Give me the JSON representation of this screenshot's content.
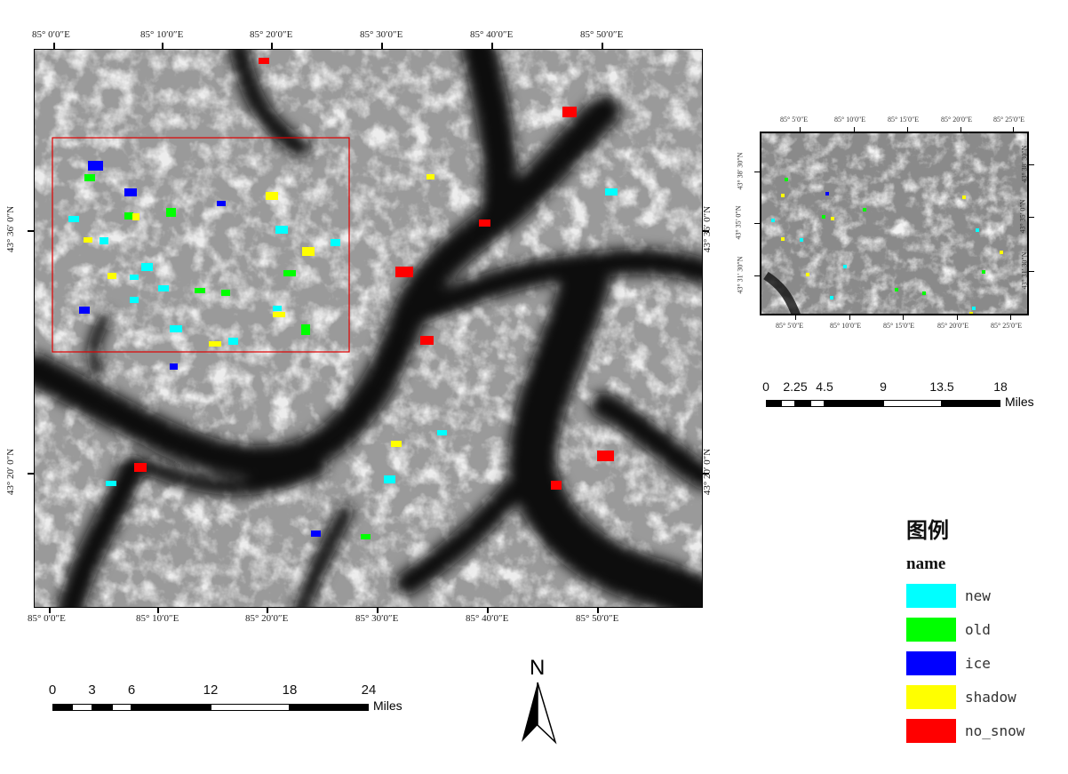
{
  "main_map": {
    "top_lon_labels": [
      "85° 0′0″E",
      "85° 10′0″E",
      "85° 20′0″E",
      "85° 30′0″E",
      "85° 40′0″E",
      "85° 50′0″E"
    ],
    "bottom_lon_labels": [
      "85° 0′0″E",
      "85° 10′0″E",
      "85° 20′0″E",
      "85° 30′0″E",
      "85° 40′0″E",
      "85° 50′0″E"
    ],
    "lat_labels": [
      "43° 36′ 0″N",
      "43° 20′ 0″N"
    ],
    "inset_extent_color": "#e00000"
  },
  "inset_map": {
    "top_lon_labels": [
      "85° 5′0″E",
      "85° 10′0″E",
      "85° 15′0″E",
      "85° 20′0″E",
      "85° 25′0″E"
    ],
    "bottom_lon_labels": [
      "85° 5′0″E",
      "85° 10′0″E",
      "85° 15′0″E",
      "85° 20′0″E",
      "85° 25′0″E"
    ],
    "lat_labels": [
      "43° 38′ 30″N",
      "43° 35′ 0″N",
      "43° 31′ 30″N"
    ]
  },
  "scale_main": {
    "ticks": [
      "0",
      "3",
      "6",
      "12",
      "18",
      "24"
    ],
    "unit": "Miles"
  },
  "scale_inset": {
    "ticks": [
      "0",
      "2.25",
      "4.5",
      "9",
      "13.5",
      "18"
    ],
    "unit": "Miles"
  },
  "north_arrow": {
    "label": "N",
    "icon": "north-arrow-icon"
  },
  "legend": {
    "title": "图例",
    "field": "name",
    "items": [
      {
        "label": "new",
        "color": "#00ffff"
      },
      {
        "label": "old",
        "color": "#00ff00"
      },
      {
        "label": "ice",
        "color": "#0000ff"
      },
      {
        "label": "shadow",
        "color": "#ffff00"
      },
      {
        "label": "no_snow",
        "color": "#ff0000"
      }
    ]
  }
}
